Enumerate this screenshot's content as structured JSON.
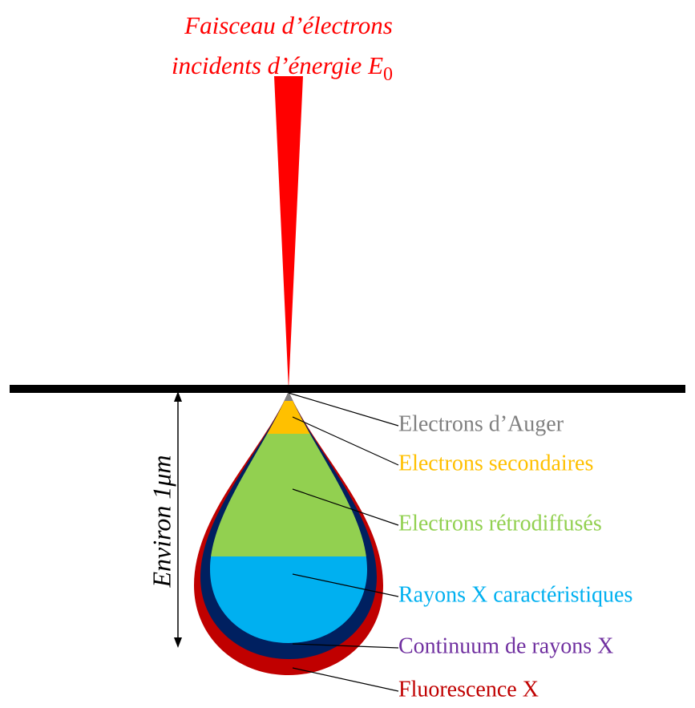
{
  "beam": {
    "line1": "Faisceau d’électrons",
    "line2": "incidents d’énergie ",
    "symbol": "E",
    "subscript": "0",
    "color": "#ff0000"
  },
  "depth_label": "Environ 1μm",
  "zones": [
    {
      "label": "Electrons d’Auger",
      "color": "#808080"
    },
    {
      "label": "Electrons secondaires",
      "color": "#ffc000"
    },
    {
      "label": "Electrons rétrodiffusés",
      "color": "#92d050"
    },
    {
      "label": "Rayons X caractéristiques",
      "color": "#00b0f0"
    },
    {
      "label": "Continuum de rayons X",
      "color": "#7030a0"
    },
    {
      "label": "Fluorescence X",
      "color": "#c00000"
    }
  ]
}
